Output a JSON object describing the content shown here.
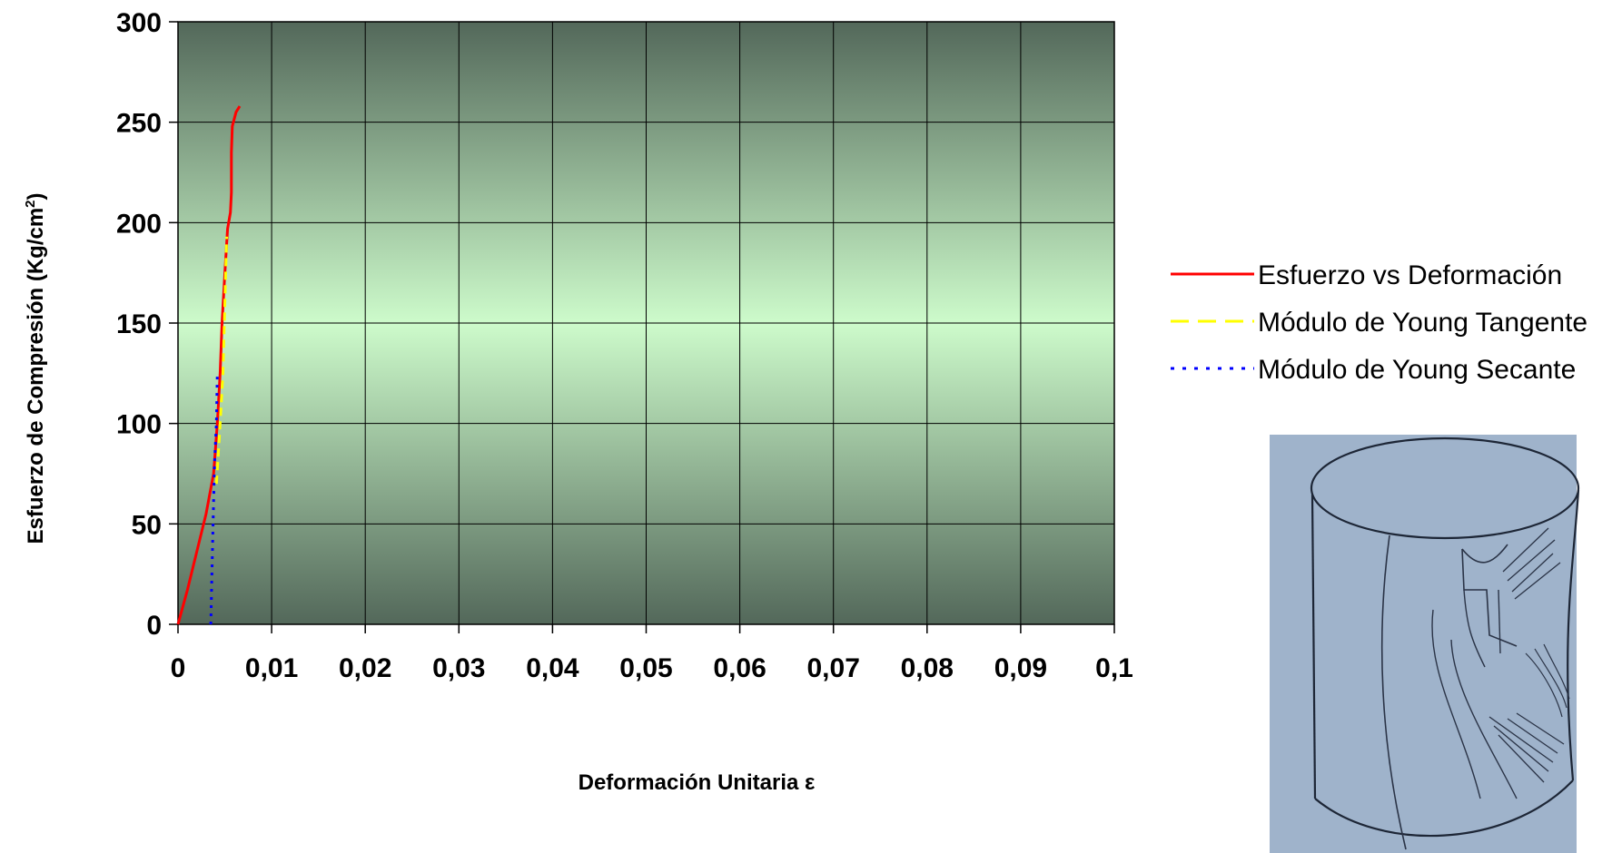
{
  "chart_data": {
    "type": "line",
    "title": "",
    "xlabel": "Deformación Unitaria ε",
    "ylabel_main": "Esfuerzo de Compresión (Kg/cm",
    "ylabel_sup": "2",
    "ylabel_end": ")",
    "xlim": [
      0,
      0.1
    ],
    "ylim": [
      0,
      300
    ],
    "x_ticks": [
      "0",
      "0,01",
      "0,02",
      "0,03",
      "0,04",
      "0,05",
      "0,06",
      "0,07",
      "0,08",
      "0,09",
      "0,1"
    ],
    "y_ticks": [
      "0",
      "50",
      "100",
      "150",
      "200",
      "250",
      "300"
    ],
    "grid": true,
    "legend_position": "right",
    "series": [
      {
        "name": "Esfuerzo vs Deformación",
        "color": "#ff0000",
        "style": "solid",
        "x": [
          0,
          0.001,
          0.002,
          0.003,
          0.0038,
          0.0042,
          0.0045,
          0.0047,
          0.005,
          0.0053,
          0.0056,
          0.0057,
          0.0057,
          0.0058,
          0.0062,
          0.0066
        ],
        "y": [
          0,
          17,
          36,
          55,
          75,
          100,
          125,
          150,
          175,
          197,
          205,
          215,
          235,
          248,
          255,
          258
        ]
      },
      {
        "name": "Módulo de Young Tangente",
        "color": "#ffff00",
        "style": "dashed",
        "x": [
          0.0041,
          0.0045,
          0.0048,
          0.005,
          0.0052
        ],
        "y": [
          70,
          100,
          125,
          160,
          193
        ]
      },
      {
        "name": "Módulo de Young Secante",
        "color": "#0000ff",
        "style": "dotted",
        "x": [
          0.0035,
          0.0037,
          0.0039,
          0.0041,
          0.0042
        ],
        "y": [
          0,
          40,
          80,
          100,
          125
        ]
      }
    ]
  },
  "specimen_sketch": {
    "icon": "cracked-cylinder-sketch",
    "background": "#9fb3cb"
  }
}
